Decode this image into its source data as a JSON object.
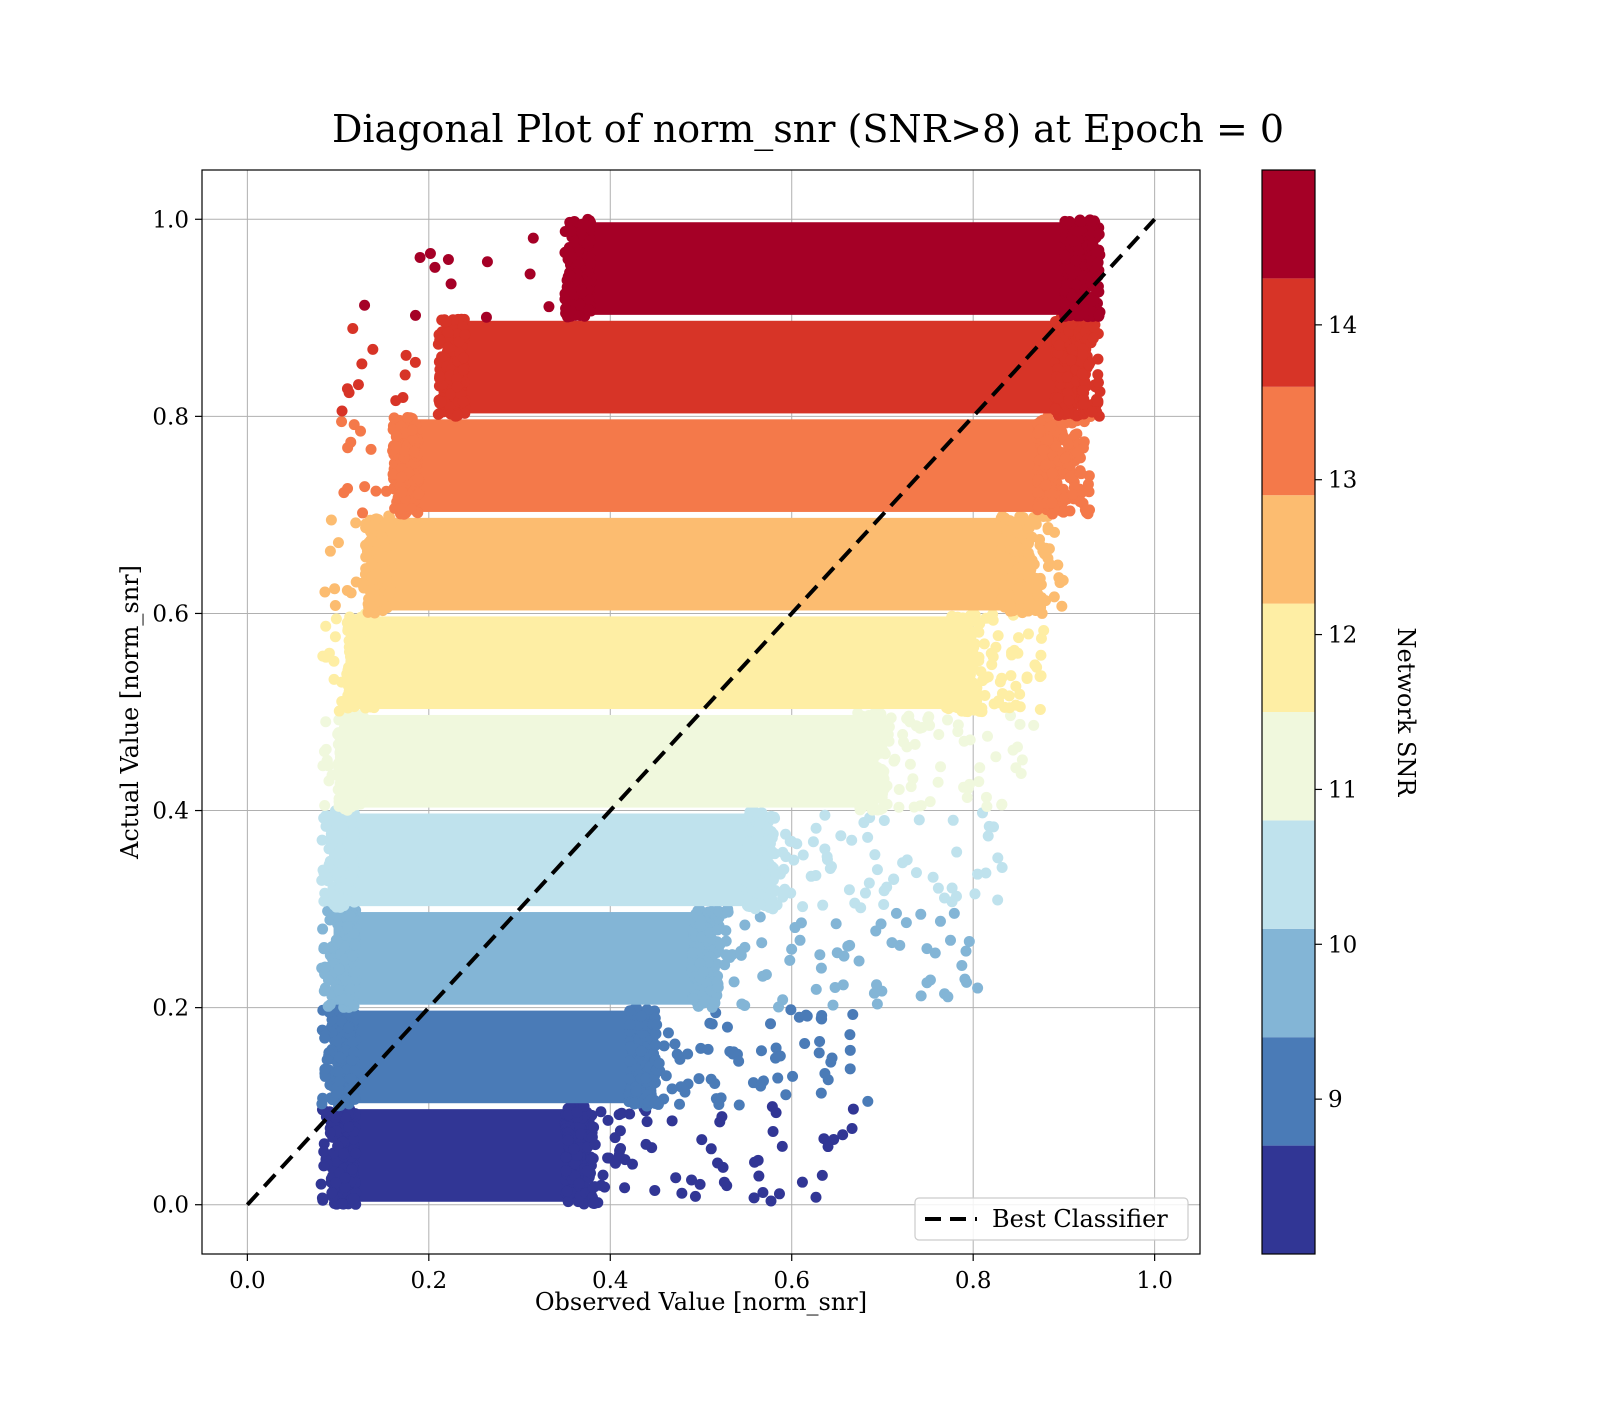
{
  "chart_data": {
    "type": "scatter",
    "title": "Diagonal Plot of norm_snr (SNR>8) at Epoch = 0",
    "xlabel": "Observed Value [norm_snr]",
    "ylabel": "Actual Value [norm_snr]",
    "xlim": [
      -0.05,
      1.05
    ],
    "ylim": [
      -0.05,
      1.05
    ],
    "x_ticks": [
      "0.0",
      "0.2",
      "0.4",
      "0.6",
      "0.8",
      "1.0"
    ],
    "y_ticks": [
      "0.0",
      "0.2",
      "0.4",
      "0.6",
      "0.8",
      "1.0"
    ],
    "grid": true,
    "legend": {
      "placement": "lower-right",
      "entries": [
        "Best Classifier"
      ]
    },
    "reference_line": {
      "name": "Best Classifier",
      "style": "dashed",
      "color": "#000000",
      "x": [
        0.0,
        1.0
      ],
      "y": [
        0.0,
        1.0
      ]
    },
    "colorbar": {
      "label": "Network SNR",
      "range": [
        8.0,
        15.0
      ],
      "ticks": [
        "9",
        "10",
        "11",
        "12",
        "13",
        "14"
      ],
      "colors": [
        "#313695",
        "#4a7bb7",
        "#83b5d6",
        "#bfe2ed",
        "#f0f8dd",
        "#feeea4",
        "#fcbc70",
        "#f4794a",
        "#d73427",
        "#a50026"
      ]
    },
    "series": [
      {
        "snr_band": [
          8.0,
          8.7
        ],
        "y_range": [
          0.0,
          0.1
        ],
        "x_bulk": [
          0.09,
          0.38
        ],
        "x_max": 0.69,
        "color": "#313695"
      },
      {
        "snr_band": [
          8.7,
          9.4
        ],
        "y_range": [
          0.1,
          0.2
        ],
        "x_bulk": [
          0.09,
          0.45
        ],
        "x_max": 0.69,
        "color": "#4a7bb7"
      },
      {
        "snr_band": [
          9.4,
          10.1
        ],
        "y_range": [
          0.2,
          0.3
        ],
        "x_bulk": [
          0.09,
          0.52
        ],
        "x_max": 0.81,
        "color": "#83b5d6"
      },
      {
        "snr_band": [
          10.1,
          10.8
        ],
        "y_range": [
          0.3,
          0.4
        ],
        "x_bulk": [
          0.09,
          0.58
        ],
        "x_max": 0.84,
        "color": "#bfe2ed"
      },
      {
        "snr_band": [
          10.8,
          11.5
        ],
        "y_range": [
          0.4,
          0.5
        ],
        "x_bulk": [
          0.1,
          0.7
        ],
        "x_max": 0.87,
        "color": "#f0f8dd"
      },
      {
        "snr_band": [
          11.5,
          12.2
        ],
        "y_range": [
          0.5,
          0.6
        ],
        "x_bulk": [
          0.11,
          0.8
        ],
        "x_max": 0.88,
        "color": "#feeea4"
      },
      {
        "snr_band": [
          12.2,
          12.9
        ],
        "y_range": [
          0.6,
          0.7
        ],
        "x_bulk": [
          0.13,
          0.86
        ],
        "x_max": 0.9,
        "color": "#fcbc70"
      },
      {
        "snr_band": [
          12.9,
          13.6
        ],
        "y_range": [
          0.7,
          0.8
        ],
        "x_bulk": [
          0.16,
          0.9
        ],
        "x_max": 0.93,
        "color": "#f4794a"
      },
      {
        "snr_band": [
          13.6,
          14.3
        ],
        "y_range": [
          0.8,
          0.9
        ],
        "x_bulk": [
          0.21,
          0.92
        ],
        "x_max": 0.94,
        "color": "#d73427"
      },
      {
        "snr_band": [
          14.3,
          15.0
        ],
        "y_range": [
          0.9,
          1.0
        ],
        "x_bulk": [
          0.35,
          0.93
        ],
        "x_max": 0.94,
        "color": "#a50026"
      }
    ]
  }
}
